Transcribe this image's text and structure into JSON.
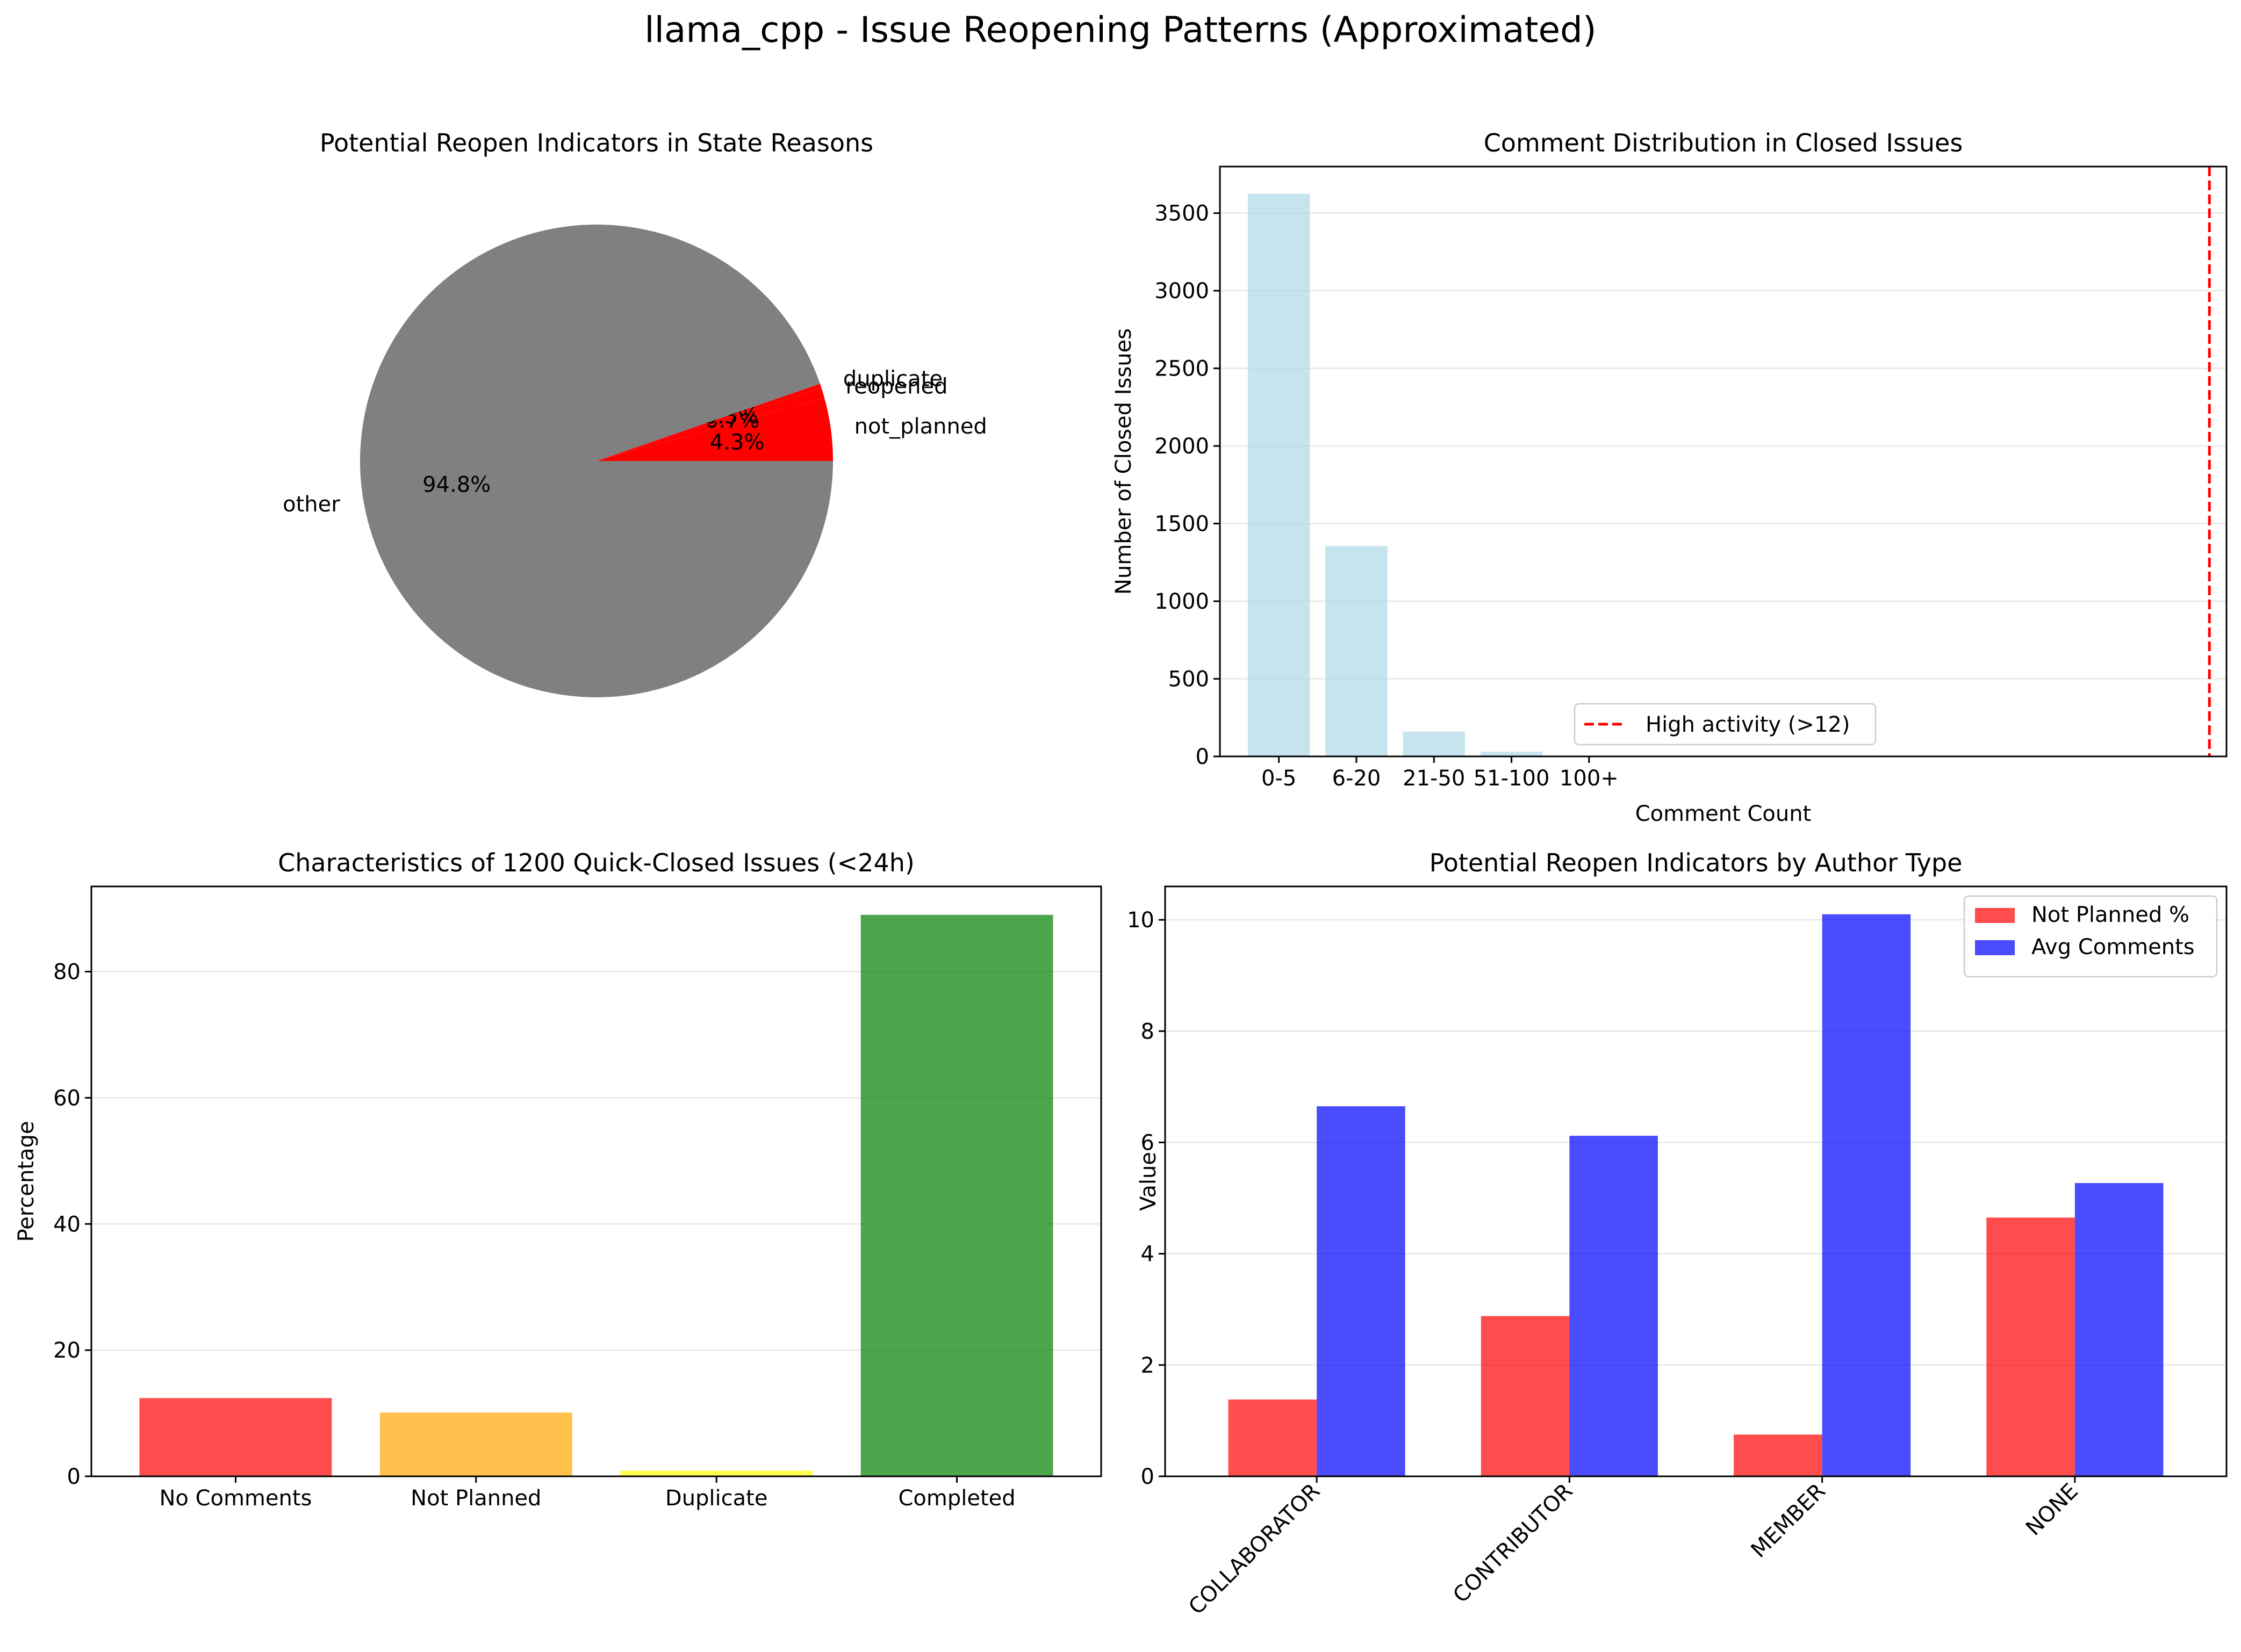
{
  "figure": {
    "title": "llama_cpp - Issue Reopening Patterns (Approximated)"
  },
  "chart_data": [
    {
      "type": "pie",
      "title": "Potential Reopen Indicators in State Reasons",
      "slices": [
        {
          "label": "not_planned",
          "value": 4.3,
          "pct_label": "4.3%",
          "color": "#ff0000"
        },
        {
          "label": "reopened",
          "value": 0.7,
          "pct_label": "0.7%",
          "color": "#ff0000"
        },
        {
          "label": "duplicate",
          "value": 0.3,
          "pct_label": "0.3%",
          "color": "#ff0000"
        },
        {
          "label": "other",
          "value": 94.8,
          "pct_label": "94.8%",
          "color": "#808080"
        }
      ]
    },
    {
      "type": "bar",
      "title": "Comment Distribution in Closed Issues",
      "xlabel": "Comment Count",
      "ylabel": "Number of Closed Issues",
      "categories": [
        "0-5",
        "6-20",
        "21-50",
        "51-100",
        "100+"
      ],
      "values": [
        3625,
        1355,
        160,
        30,
        0
      ],
      "ylim": [
        0,
        3800
      ],
      "yticks": [
        0,
        500,
        1000,
        1500,
        2000,
        2500,
        3000,
        3500
      ],
      "bar_color": "#add8e6",
      "grid": "y",
      "legend": {
        "label": "High activity (>12)",
        "placement": "lower center"
      },
      "threshold": {
        "label": "High activity (>12)",
        "x": 12,
        "color": "#ff0000",
        "style": "dashed"
      }
    },
    {
      "type": "bar",
      "title": "Characteristics of 1200 Quick-Closed Issues (<24h)",
      "ylabel": "Percentage",
      "categories": [
        "No Comments",
        "Not Planned",
        "Duplicate",
        "Completed"
      ],
      "values": [
        12.4,
        10.1,
        0.9,
        89.0
      ],
      "colors": [
        "#ff0000",
        "#ffa500",
        "#ffff00",
        "#008000"
      ],
      "ylim": [
        0,
        93.5
      ],
      "yticks": [
        0,
        20,
        40,
        60,
        80
      ],
      "grid": "y"
    },
    {
      "type": "bar",
      "title": "Potential Reopen Indicators by Author Type",
      "ylabel": "Value",
      "categories": [
        "COLLABORATOR",
        "CONTRIBUTOR",
        "MEMBER",
        "NONE"
      ],
      "series": [
        {
          "name": "Not Planned %",
          "values": [
            1.38,
            2.88,
            0.75,
            4.65
          ],
          "color": "#ff0000"
        },
        {
          "name": "Avg Comments",
          "values": [
            6.65,
            6.12,
            10.1,
            5.27
          ],
          "color": "#0000ff"
        }
      ],
      "ylim": [
        0,
        10.6
      ],
      "yticks": [
        0,
        2,
        4,
        6,
        8,
        10
      ],
      "grid": "y",
      "legend_placement": "upper right"
    }
  ]
}
